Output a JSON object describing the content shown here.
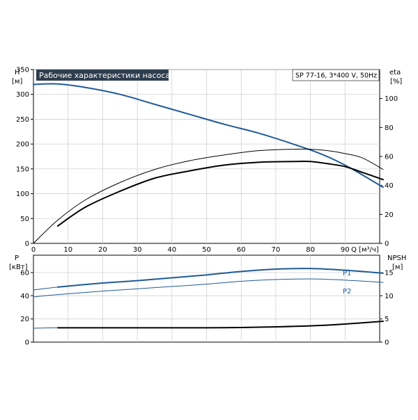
{
  "chart_data": [
    {
      "type": "line",
      "title": "Рабочие характеристики насоса",
      "subtitle": "SP 77-16, 3*400 V, 50Hz",
      "xlabel": "Q [м³/ч]",
      "ylabel_left": "H",
      "ylabel_left_unit": "[м]",
      "ylabel_right": "eta",
      "ylabel_right_unit": "[%]",
      "xlim": [
        0,
        100
      ],
      "ylim_left": [
        0,
        350
      ],
      "ylim_right": [
        0,
        120
      ],
      "x_ticks": [
        0,
        10,
        20,
        30,
        40,
        50,
        60,
        70,
        80,
        90
      ],
      "y_left_ticks": [
        0,
        50,
        100,
        150,
        200,
        250,
        300,
        350
      ],
      "y_right_ticks": [
        0,
        20,
        40,
        60,
        80,
        100
      ],
      "grid": true,
      "series": [
        {
          "axis": "left",
          "color": "#1f5a96",
          "width": 2,
          "x": [
            0,
            7,
            15,
            25,
            35,
            45,
            55,
            65,
            75,
            82,
            87,
            92,
            101
          ],
          "values": [
            320,
            321,
            314,
            300,
            280,
            260,
            240,
            222,
            200,
            183,
            168,
            150,
            113
          ]
        },
        {
          "axis": "right",
          "color": "#000000",
          "width": 1,
          "x": [
            0,
            7,
            15,
            25,
            35,
            45,
            55,
            65,
            75,
            80,
            85,
            90,
            95,
            101
          ],
          "values": [
            0,
            16,
            30,
            42,
            51,
            57,
            61,
            64,
            65,
            65,
            64,
            62,
            59,
            51
          ]
        },
        {
          "axis": "right",
          "color": "#000000",
          "width": 2,
          "x": [
            7,
            15,
            25,
            35,
            45,
            55,
            65,
            75,
            80,
            85,
            90,
            95,
            101
          ],
          "values": [
            12,
            25,
            36,
            45,
            50,
            54,
            56,
            56.5,
            56.5,
            55,
            53,
            49,
            44
          ]
        }
      ]
    },
    {
      "type": "line",
      "ylabel_left": "P",
      "ylabel_left_unit": "[кВт]",
      "ylabel_right": "NPSH",
      "ylabel_right_unit": "[м]",
      "xlim": [
        0,
        100
      ],
      "ylim_left": [
        0,
        75
      ],
      "ylim_right": [
        0,
        18.75
      ],
      "x_ticks": [
        0,
        10,
        20,
        30,
        40,
        50,
        60,
        70,
        80,
        90
      ],
      "y_left_ticks": [
        0,
        20,
        40,
        60
      ],
      "y_right_ticks": [
        0,
        5,
        10,
        15
      ],
      "grid": true,
      "series": [
        {
          "name": "P1",
          "axis": "left",
          "color": "#1f5a96",
          "width": 2,
          "x": [
            7,
            20,
            30,
            40,
            50,
            60,
            70,
            80,
            90,
            101
          ],
          "values": [
            47.5,
            51,
            53,
            55.5,
            58,
            61,
            63,
            63.5,
            62,
            59.5
          ]
        },
        {
          "name": "P2",
          "axis": "left",
          "color": "#1f5a96",
          "width": 1,
          "x": [
            0,
            7,
            20,
            30,
            40,
            50,
            60,
            70,
            80,
            90,
            101
          ],
          "values": [
            39,
            41,
            44,
            46,
            48,
            50,
            52.5,
            54,
            54.5,
            53.5,
            51.5
          ]
        },
        {
          "axis": "left",
          "color": "#1f5a96",
          "width": 1,
          "x": [
            0,
            7,
            20,
            30,
            40,
            50,
            60
          ],
          "values": [
            45,
            47.5,
            51,
            53,
            55.5,
            58,
            61
          ]
        },
        {
          "axis": "right",
          "color": "#000000",
          "width": 2,
          "x": [
            7,
            20,
            30,
            40,
            50,
            60,
            70,
            80,
            90,
            101
          ],
          "values": [
            3.1,
            3.1,
            3.1,
            3.1,
            3.1,
            3.15,
            3.3,
            3.5,
            3.9,
            4.5
          ]
        },
        {
          "axis": "right",
          "color": "#1f5a96",
          "width": 1,
          "x": [
            0,
            7
          ],
          "values": [
            3.0,
            3.1
          ]
        }
      ]
    }
  ]
}
